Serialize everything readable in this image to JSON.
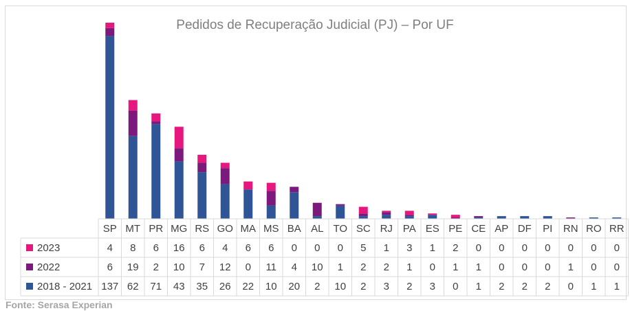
{
  "chart_data": {
    "type": "bar",
    "stacked": true,
    "title": "Pedidos de Recuperação Judicial (PJ) – Por UF",
    "categories": [
      "SP",
      "MT",
      "PR",
      "MG",
      "RS",
      "GO",
      "MA",
      "MS",
      "BA",
      "AL",
      "TO",
      "SC",
      "RJ",
      "PA",
      "ES",
      "PE",
      "CE",
      "AP",
      "DF",
      "PI",
      "RN",
      "RO",
      "RR"
    ],
    "series": [
      {
        "name": "2018 - 2021",
        "color": "#2f5597",
        "values": [
          137,
          62,
          71,
          43,
          35,
          26,
          22,
          10,
          20,
          2,
          10,
          2,
          3,
          2,
          3,
          0,
          1,
          2,
          2,
          2,
          0,
          1,
          1
        ]
      },
      {
        "name": "2022",
        "color": "#7b1a7c",
        "values": [
          6,
          19,
          2,
          10,
          7,
          12,
          0,
          11,
          4,
          10,
          1,
          2,
          2,
          1,
          0,
          1,
          1,
          0,
          0,
          0,
          1,
          0,
          0
        ]
      },
      {
        "name": "2023",
        "color": "#e6177d",
        "values": [
          4,
          8,
          6,
          16,
          6,
          4,
          6,
          6,
          0,
          0,
          0,
          5,
          1,
          3,
          1,
          2,
          0,
          0,
          0,
          0,
          0,
          0,
          0
        ]
      }
    ],
    "table_row_order": [
      "2023",
      "2022",
      "2018 - 2021"
    ],
    "legend": "data-table",
    "grid": false
  },
  "source": "Fonte: Serasa Experian"
}
